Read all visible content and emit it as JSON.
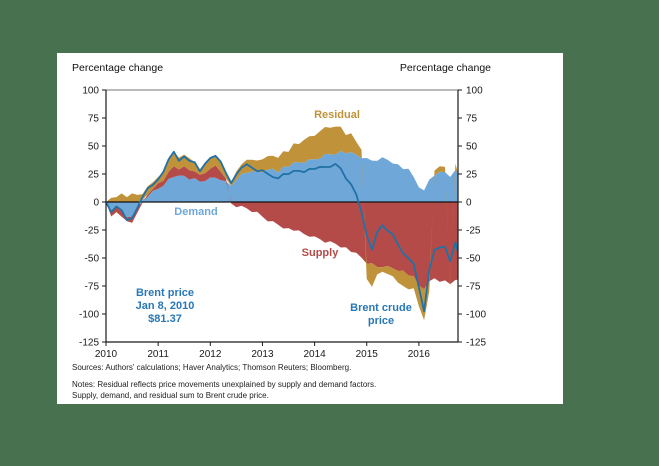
{
  "page": {
    "background": "#48714F",
    "card_background": "#FFFFFF"
  },
  "axis_titles": {
    "left": "Percentage change",
    "right": "Percentage change"
  },
  "series_labels": {
    "demand": "Demand",
    "supply": "Supply",
    "residual": "Residual"
  },
  "annotations": {
    "brent_price_line1": "Brent price",
    "brent_price_line2": "Jan 8, 2010",
    "brent_price_line3": "$81.37",
    "brent_crude_line1": "Brent crude",
    "brent_crude_line2": "price"
  },
  "footer": {
    "sources": "Sources: Authors' calculations; Haver Analytics; Thomson Reuters; Bloomberg.",
    "notes_line1": "Notes: Residual reflects price movements unexplained by supply and demand factors.",
    "notes_line2": "Supply, demand, and residual sum to Brent crude price."
  },
  "colors": {
    "demand_area": "#6FA8D8",
    "supply_area": "#B54B48",
    "residual_area": "#C0923A",
    "brent_line": "#2171A6",
    "annotation_text": "#2878B8",
    "zero_line": "#111111",
    "border": "#1a1a1a",
    "border_top": "#909090",
    "background_green": "#48714F"
  },
  "chart_data": {
    "type": "area",
    "stacked": true,
    "title": "",
    "xlabel": "",
    "ylabel_left": "Percentage change",
    "ylabel_right": "Percentage change",
    "ylim": [
      -125,
      100
    ],
    "xrange": [
      2010,
      2016.75
    ],
    "yticks": [
      100,
      75,
      50,
      25,
      0,
      -25,
      -50,
      -75,
      -100,
      -125
    ],
    "xticks": [
      2010,
      2011,
      2012,
      2013,
      2014,
      2015,
      2016
    ],
    "grid": false,
    "legend_position": "inline-labels",
    "x": [
      2010.0,
      2010.1,
      2010.2,
      2010.3,
      2010.4,
      2010.5,
      2010.6,
      2010.7,
      2010.8,
      2010.9,
      2011.0,
      2011.1,
      2011.2,
      2011.3,
      2011.4,
      2011.5,
      2011.6,
      2011.7,
      2011.8,
      2011.9,
      2012.0,
      2012.1,
      2012.2,
      2012.3,
      2012.4,
      2012.5,
      2012.6,
      2012.7,
      2012.8,
      2012.9,
      2013.0,
      2013.1,
      2013.2,
      2013.3,
      2013.4,
      2013.5,
      2013.6,
      2013.7,
      2013.8,
      2013.9,
      2014.0,
      2014.1,
      2014.2,
      2014.3,
      2014.4,
      2014.5,
      2014.6,
      2014.7,
      2014.8,
      2014.9,
      2015.0,
      2015.1,
      2015.2,
      2015.3,
      2015.4,
      2015.5,
      2015.6,
      2015.7,
      2015.8,
      2015.9,
      2016.0,
      2016.1,
      2016.2,
      2016.3,
      2016.4,
      2016.5,
      2016.6,
      2016.7,
      2016.75
    ],
    "series": [
      {
        "name": "Demand",
        "color": "#6FA8D8",
        "values": [
          0,
          -8,
          -4,
          -10,
          -14,
          -12,
          -6,
          2,
          6,
          9,
          12,
          16,
          20,
          23,
          22,
          23,
          21,
          20,
          18,
          20,
          21,
          22,
          21,
          18,
          15,
          18,
          25,
          27,
          26,
          27,
          28,
          28,
          30,
          28,
          31,
          32,
          34,
          35,
          36,
          37,
          38,
          40,
          42,
          43,
          44,
          45,
          44,
          43,
          42,
          40,
          38,
          37,
          38,
          39,
          38,
          36,
          33,
          30,
          28,
          22,
          14,
          9,
          20,
          25,
          26,
          27,
          24,
          28,
          26
        ]
      },
      {
        "name": "Supply",
        "color": "#B54B48",
        "values": [
          0,
          -4,
          -5,
          -4,
          -5,
          -6,
          -4,
          -2,
          2,
          3,
          4,
          5,
          8,
          9,
          6,
          7,
          8,
          7,
          5,
          7,
          9,
          10,
          8,
          4,
          -2,
          -4,
          -5,
          -6,
          -8,
          -10,
          -13,
          -16,
          -18,
          -20,
          -22,
          -24,
          -25,
          -27,
          -29,
          -30,
          -32,
          -33,
          -35,
          -36,
          -37,
          -39,
          -41,
          -44,
          -47,
          -50,
          -54,
          -56,
          -58,
          -57,
          -58,
          -59,
          -60,
          -62,
          -65,
          -68,
          -75,
          -77,
          -72,
          -68,
          -70,
          -71,
          -73,
          -68,
          -70
        ]
      },
      {
        "name": "Residual",
        "color": "#C0923A",
        "values": [
          0,
          4,
          6,
          7,
          5,
          6,
          6,
          6,
          6,
          6,
          7,
          7,
          12,
          14,
          10,
          11,
          9,
          8,
          6,
          8,
          10,
          10,
          8,
          5,
          5,
          7,
          9,
          10,
          10,
          11,
          10,
          12,
          13,
          12,
          14,
          15,
          16,
          17,
          19,
          20,
          22,
          23,
          24,
          25,
          24,
          22,
          18,
          16,
          12,
          6,
          -14,
          -20,
          -8,
          -4,
          -6,
          -8,
          -10,
          -12,
          -13,
          -10,
          -20,
          -28,
          -8,
          3,
          5,
          6,
          -4,
          6,
          2
        ]
      }
    ],
    "line": {
      "name": "Brent crude price",
      "color": "#2171A6",
      "values": [
        0,
        -9,
        -3,
        -8,
        -16,
        -13,
        -6,
        5,
        11,
        15,
        21,
        26,
        38,
        46,
        36,
        41,
        38,
        35,
        28,
        33,
        39,
        42,
        35,
        26,
        18,
        24,
        31,
        35,
        30,
        28,
        27,
        25,
        23,
        20,
        25,
        26,
        27,
        28,
        28,
        29,
        30,
        30,
        31,
        32,
        33,
        30,
        22,
        15,
        7,
        -8,
        -30,
        -42,
        -28,
        -21,
        -25,
        -30,
        -38,
        -45,
        -51,
        -55,
        -75,
        -98,
        -60,
        -44,
        -41,
        -39,
        -54,
        -36,
        -44
      ]
    },
    "reference_point": {
      "label": "Brent price Jan 8, 2010 $81.37",
      "value": 81.37,
      "date": "Jan 8, 2010"
    }
  }
}
